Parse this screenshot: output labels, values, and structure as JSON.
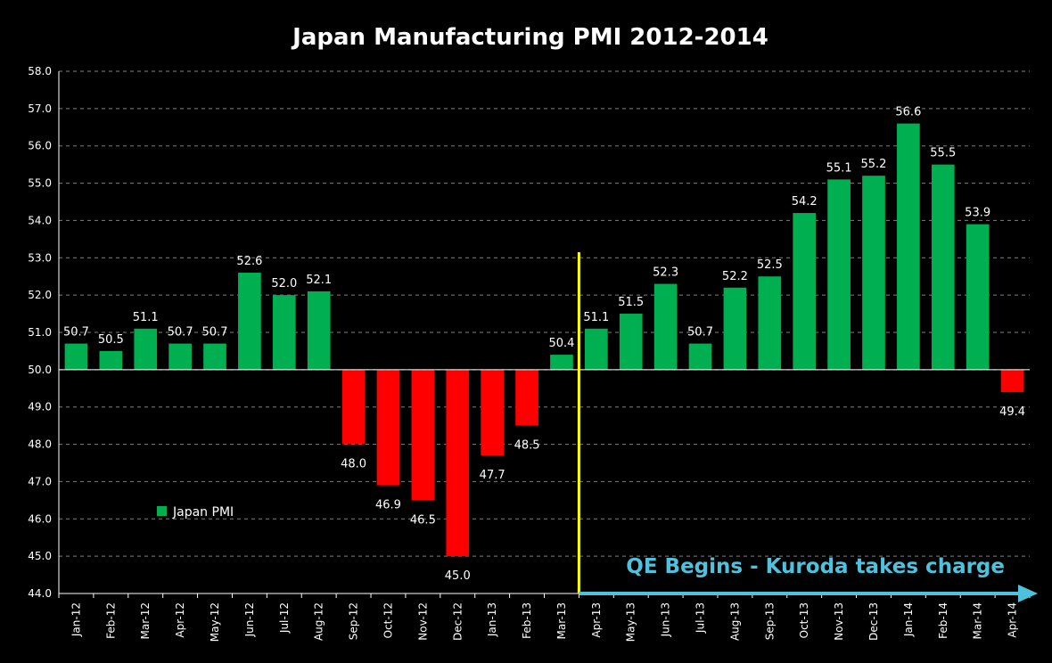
{
  "chart_data": {
    "type": "bar",
    "title": "Japan Manufacturing  PMI 2012-2014",
    "xlabel": "",
    "ylabel": "",
    "ylim": [
      44.0,
      58.0
    ],
    "ytick_step": 1.0,
    "baseline": 50.0,
    "grid": true,
    "categories": [
      "Jan-12",
      "Feb-12",
      "Mar-12",
      "Apr-12",
      "May-12",
      "Jun-12",
      "Jul-12",
      "Aug-12",
      "Sep-12",
      "Oct-12",
      "Nov-12",
      "Dec-12",
      "Jan-13",
      "Feb-13",
      "Mar-13",
      "Apr-13",
      "May-13",
      "Jun-13",
      "Jul-13",
      "Aug-13",
      "Sep-13",
      "Oct-13",
      "Nov-13",
      "Dec-13",
      "Jan-14",
      "Feb-14",
      "Mar-14",
      "Apr-14"
    ],
    "series": [
      {
        "name": "Japan PMI",
        "values": [
          50.7,
          50.5,
          51.1,
          50.7,
          50.7,
          52.6,
          52.0,
          52.1,
          48.0,
          46.9,
          46.5,
          45.0,
          47.7,
          48.5,
          50.4,
          51.1,
          51.5,
          52.3,
          50.7,
          52.2,
          52.5,
          54.2,
          55.1,
          55.2,
          56.6,
          55.5,
          53.9,
          49.4
        ],
        "labels": [
          "50.7",
          "50.5",
          "51.1",
          "50.7",
          "50.7",
          "52.6",
          "52.0",
          "52.1",
          "48.0",
          "46.9",
          "46.5",
          "45.0",
          "47.7",
          "48.5",
          "50.4",
          "51.1",
          "51.5",
          "52.3",
          "50.7",
          "52.2",
          "52.5",
          "54.2",
          "55.1",
          "55.2",
          "56.6",
          "55.5",
          "53.9",
          "49.4"
        ]
      }
    ],
    "legend": {
      "label": "Japan PMI",
      "position": "middle-left"
    },
    "annotation": {
      "text": "QE Begins - Kuroda takes charge",
      "marker_after_category": "Mar-13",
      "arrow_direction": "right"
    },
    "colors": {
      "above": "#00b050",
      "below": "#ff0000",
      "marker_line": "#ffff00",
      "annotation": "#4ec2dc",
      "grid": "#7f7f7f",
      "axis": "#ffffff",
      "background": "#000000"
    }
  }
}
